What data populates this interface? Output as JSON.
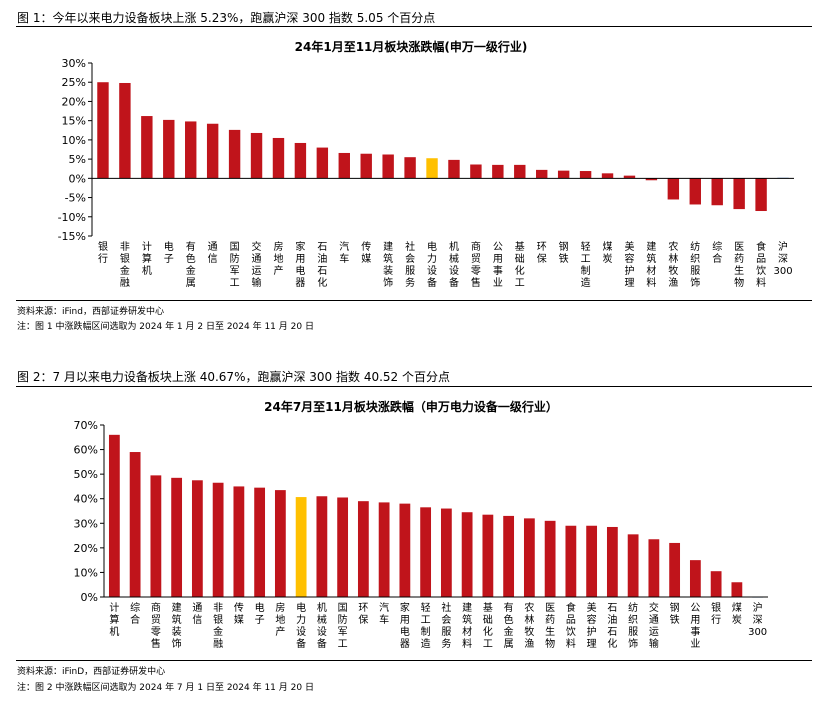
{
  "figure1": {
    "caption": "图 1：今年以来电力设备板块上涨 5.23%，跑赢沪深 300 指数 5.05 个百分点",
    "source": "资料来源：iFind，西部证券研发中心",
    "note": "注：图 1 中涨跌幅区间选取为 2024 年 1 月 2 日至 2024 年 11 月 20 日"
  },
  "figure2": {
    "caption": "图 2：7 月以来电力设备板块上涨 40.67%，跑赢沪深 300 指数 40.52 个百分点",
    "source": "资料来源：iFinD，西部证券研发中心",
    "note": "注：图 2 中涨跌幅区间选取为 2024 年 7 月 1 日至 2024 年 11 月 20 日"
  },
  "colors": {
    "bar": "#c0141b",
    "highlight": "#ffc000",
    "benchmark": "#8fb4e3"
  },
  "chart_data": [
    {
      "type": "bar",
      "title": "24年1月至11月板块涨跌幅(申万一级行业)",
      "ylim": [
        -15,
        30
      ],
      "yticks": [
        30,
        25,
        20,
        15,
        10,
        5,
        0,
        -5,
        -10,
        -15
      ],
      "ytick_labels": [
        "30%",
        "25%",
        "20%",
        "15%",
        "10%",
        "5%",
        "0%",
        "-5%",
        "-10%",
        "-15%"
      ],
      "categories": [
        "银行",
        "非银金融",
        "计算机",
        "电子",
        "有色金属",
        "通信",
        "国防军工",
        "交通运输",
        "房地产",
        "家用电器",
        "石油石化",
        "汽车",
        "传媒",
        "建筑装饰",
        "社会服务",
        "电力设备",
        "机械设备",
        "商贸零售",
        "公用事业",
        "基础化工",
        "环保",
        "钢铁",
        "轻工制造",
        "煤炭",
        "美容护理",
        "建筑材料",
        "农林牧渔",
        "纺织服饰",
        "综合",
        "医药生物",
        "食品饮料",
        "沪深300"
      ],
      "values": [
        25,
        24.8,
        16.2,
        15.2,
        14.8,
        14.2,
        12.6,
        11.8,
        10.5,
        9.2,
        8.0,
        6.6,
        6.4,
        6.2,
        5.5,
        5.23,
        4.8,
        3.6,
        3.5,
        3.5,
        2.2,
        2.0,
        1.9,
        1.3,
        0.7,
        -0.5,
        -5.5,
        -6.8,
        -7.0,
        -8.0,
        -8.5,
        0.18
      ],
      "highlight_index": 15,
      "benchmark_index": 31
    },
    {
      "type": "bar",
      "title": "24年7月至11月板块涨跌幅（申万电力设备一级行业）",
      "ylim": [
        0,
        70
      ],
      "yticks": [
        70,
        60,
        50,
        40,
        30,
        20,
        10,
        0
      ],
      "ytick_labels": [
        "70%",
        "60%",
        "50%",
        "40%",
        "30%",
        "20%",
        "10%",
        "0%"
      ],
      "categories": [
        "计算机",
        "综合",
        "商贸零售",
        "建筑装饰",
        "通信",
        "非银金融",
        "传媒",
        "电子",
        "房地产",
        "电力设备",
        "机械设备",
        "国防军工",
        "环保",
        "汽车",
        "家用电器",
        "轻工制造",
        "社会服务",
        "建筑材料",
        "基础化工",
        "有色金属",
        "农林牧渔",
        "医药生物",
        "食品饮料",
        "美容护理",
        "石油石化",
        "纺织服饰",
        "交通运输",
        "钢铁",
        "公用事业",
        "银行",
        "煤炭",
        "沪深300"
      ],
      "values": [
        66,
        59,
        49.5,
        48.5,
        47.5,
        46.5,
        45,
        44.5,
        43.5,
        40.67,
        41,
        40.5,
        39,
        38.5,
        38,
        36.5,
        36,
        34.5,
        33.5,
        33,
        32,
        31,
        29,
        29,
        28.5,
        25.5,
        23.5,
        22,
        15,
        10.5,
        6,
        0.15
      ],
      "highlight_index": 9,
      "benchmark_index": 31
    }
  ]
}
